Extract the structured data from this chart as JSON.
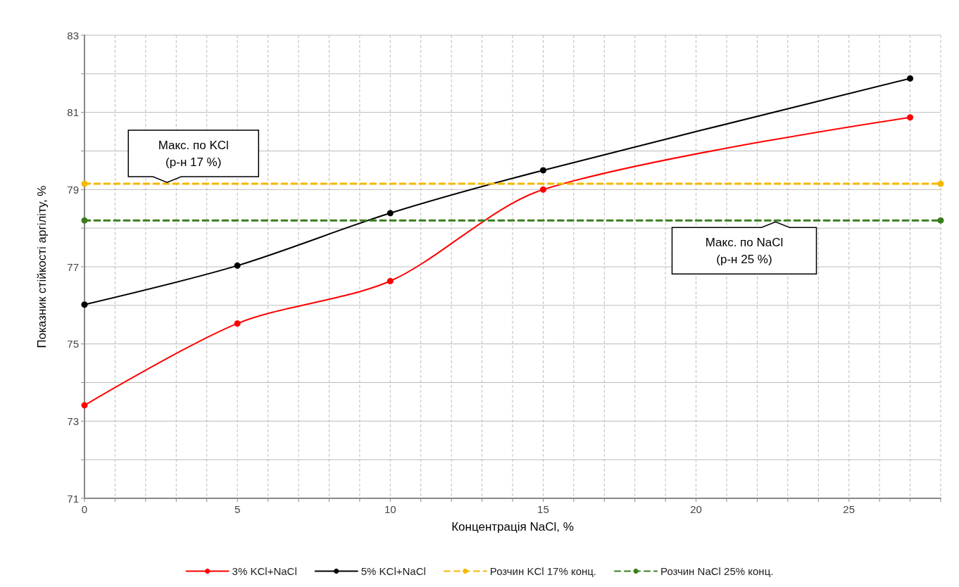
{
  "chart_data": {
    "type": "line",
    "xlabel": "Концентрація NaCl, %",
    "ylabel": "Показник стійкості аргіліту, %",
    "xlim": [
      0,
      28
    ],
    "xticks": [
      0,
      {
        "value": 1,
        "label": null
      },
      {
        "value": 2,
        "label": null
      },
      {
        "value": 3,
        "label": null
      },
      {
        "value": 4,
        "label": null
      },
      5,
      {
        "value": 6,
        "label": null
      },
      {
        "value": 7,
        "label": null
      },
      {
        "value": 8,
        "label": null
      },
      {
        "value": 9,
        "label": null
      },
      10,
      {
        "value": 11,
        "label": null
      },
      {
        "value": 12,
        "label": null
      },
      {
        "value": 13,
        "label": null
      },
      {
        "value": 14,
        "label": null
      },
      15,
      {
        "value": 16,
        "label": null
      },
      {
        "value": 17,
        "label": null
      },
      {
        "value": 18,
        "label": null
      },
      {
        "value": 19,
        "label": null
      },
      20,
      {
        "value": 21,
        "label": null
      },
      {
        "value": 22,
        "label": null
      },
      {
        "value": 23,
        "label": null
      },
      {
        "value": 24,
        "label": null
      },
      25,
      {
        "value": 26,
        "label": null
      },
      {
        "value": 27,
        "label": null
      },
      {
        "value": 28,
        "label": null
      }
    ],
    "ylim": [
      71,
      83
    ],
    "yticks": [
      71,
      {
        "value": 72,
        "label": null
      },
      73,
      {
        "value": 74,
        "label": null
      },
      75,
      {
        "value": 76,
        "label": null
      },
      77,
      {
        "value": 78,
        "label": null
      },
      79,
      {
        "value": 80,
        "label": null
      },
      81,
      {
        "value": 82,
        "label": null
      },
      83
    ],
    "grid": true,
    "legend": "bottom",
    "marker": "circle",
    "series": [
      {
        "name": "3% KCl+NaCl",
        "color": "#ff0000",
        "x": [
          0,
          5,
          10,
          15,
          27
        ],
        "values": [
          73.41,
          75.53,
          76.63,
          79.0,
          80.87
        ]
      },
      {
        "name": "5% KCl+NaCl",
        "color": "#000000",
        "x": [
          0,
          5,
          10,
          15,
          27
        ],
        "values": [
          76.02,
          77.03,
          78.39,
          79.5,
          81.88
        ]
      },
      {
        "name": "Розчин KCl 17% конц.",
        "color": "#f5b800",
        "line_style": "dashed",
        "x": [
          0,
          28
        ],
        "values": [
          79.15,
          79.15
        ]
      },
      {
        "name": "Розчин NaCl 25% конц.",
        "color": "#3a7d1e",
        "line_style": "dashed",
        "x": [
          0,
          28
        ],
        "values": [
          78.2,
          78.2
        ]
      }
    ],
    "annotations": [
      {
        "text": "Макс. по KCl\n(р-н 17 %)",
        "x": 2.7,
        "y": 79.15
      },
      {
        "text": "Макс. по NaCl\n(р-н 25 %)",
        "x": 22.6,
        "y": 78.2
      }
    ]
  }
}
